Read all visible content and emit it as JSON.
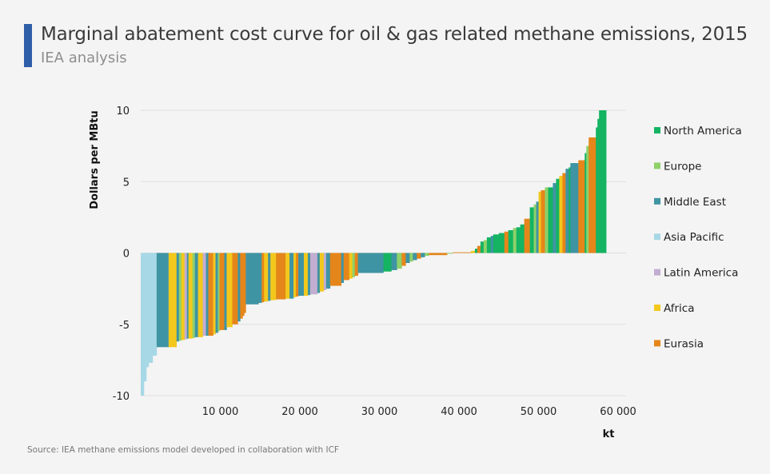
{
  "title": "Marginal abatement cost curve for oil & gas related methane emissions, 2015",
  "subtitle": "IEA analysis",
  "source": "Source: IEA methane emissions model developed in collaboration with ICF",
  "chart_data": {
    "type": "bar",
    "xlabel": "kt",
    "ylabel": "Dollars per MBtu",
    "xlim": [
      0,
      61000
    ],
    "ylim": [
      -10,
      10
    ],
    "x_ticks": [
      10000,
      20000,
      30000,
      40000,
      50000,
      60000
    ],
    "x_tick_labels": [
      "10 000",
      "20 000",
      "30 000",
      "40 000",
      "50 000",
      "60 000"
    ],
    "y_ticks": [
      10,
      5,
      0,
      -5,
      -10
    ],
    "y_tick_labels": [
      "10",
      "5",
      "0",
      "-5",
      "-10"
    ],
    "grid": true,
    "legend_position": "right",
    "series": [
      {
        "name": "North America",
        "color": "#14b462"
      },
      {
        "name": "Europe",
        "color": "#8fd16a"
      },
      {
        "name": "Middle East",
        "color": "#3f94a3"
      },
      {
        "name": "Asia Pacific",
        "color": "#a7d8e6"
      },
      {
        "name": "Latin America",
        "color": "#c1aed0"
      },
      {
        "name": "Africa",
        "color": "#f3c81d"
      },
      {
        "name": "Eurasia",
        "color": "#e5861a"
      }
    ],
    "segments": [
      {
        "region": "Asia Pacific",
        "x0": 0,
        "x1": 400,
        "cost": -10.0
      },
      {
        "region": "Asia Pacific",
        "x0": 400,
        "x1": 700,
        "cost": -9.0
      },
      {
        "region": "Asia Pacific",
        "x0": 700,
        "x1": 1000,
        "cost": -8.0
      },
      {
        "region": "Asia Pacific",
        "x0": 1000,
        "x1": 1500,
        "cost": -7.7
      },
      {
        "region": "Asia Pacific",
        "x0": 1500,
        "x1": 2000,
        "cost": -7.2
      },
      {
        "region": "Middle East",
        "x0": 2000,
        "x1": 3500,
        "cost": -6.6
      },
      {
        "region": "Africa",
        "x0": 3500,
        "x1": 4500,
        "cost": -6.6
      },
      {
        "region": "Middle East",
        "x0": 4500,
        "x1": 4800,
        "cost": -6.2
      },
      {
        "region": "Europe",
        "x0": 4800,
        "x1": 5100,
        "cost": -6.15
      },
      {
        "region": "Africa",
        "x0": 5100,
        "x1": 5500,
        "cost": -6.1
      },
      {
        "region": "Latin America",
        "x0": 5500,
        "x1": 5800,
        "cost": -6.05
      },
      {
        "region": "Middle East",
        "x0": 5800,
        "x1": 6000,
        "cost": -6.0
      },
      {
        "region": "Africa",
        "x0": 6000,
        "x1": 6500,
        "cost": -6.0
      },
      {
        "region": "Europe",
        "x0": 6500,
        "x1": 6800,
        "cost": -5.95
      },
      {
        "region": "Middle East",
        "x0": 6800,
        "x1": 7200,
        "cost": -5.9
      },
      {
        "region": "Africa",
        "x0": 7200,
        "x1": 7800,
        "cost": -5.9
      },
      {
        "region": "Latin America",
        "x0": 7800,
        "x1": 8200,
        "cost": -5.8
      },
      {
        "region": "Middle East",
        "x0": 8200,
        "x1": 8500,
        "cost": -5.8
      },
      {
        "region": "Eurasia",
        "x0": 8500,
        "x1": 9100,
        "cost": -5.8
      },
      {
        "region": "Africa",
        "x0": 9100,
        "x1": 9400,
        "cost": -5.7
      },
      {
        "region": "Middle East",
        "x0": 9400,
        "x1": 9700,
        "cost": -5.6
      },
      {
        "region": "Europe",
        "x0": 9700,
        "x1": 9900,
        "cost": -5.5
      },
      {
        "region": "Eurasia",
        "x0": 9900,
        "x1": 10500,
        "cost": -5.4
      },
      {
        "region": "Middle East",
        "x0": 10500,
        "x1": 10800,
        "cost": -5.4
      },
      {
        "region": "Africa",
        "x0": 10800,
        "x1": 11500,
        "cost": -5.2
      },
      {
        "region": "Eurasia",
        "x0": 11500,
        "x1": 12200,
        "cost": -5.0
      },
      {
        "region": "Middle East",
        "x0": 12200,
        "x1": 12500,
        "cost": -4.8
      },
      {
        "region": "Eurasia",
        "x0": 12500,
        "x1": 12800,
        "cost": -4.6
      },
      {
        "region": "Eurasia",
        "x0": 12800,
        "x1": 13000,
        "cost": -4.4
      },
      {
        "region": "Eurasia",
        "x0": 13000,
        "x1": 13200,
        "cost": -4.2
      },
      {
        "region": "Middle East",
        "x0": 13200,
        "x1": 14800,
        "cost": -3.6
      },
      {
        "region": "Middle East",
        "x0": 14800,
        "x1": 15200,
        "cost": -3.5
      },
      {
        "region": "Eurasia",
        "x0": 15200,
        "x1": 15500,
        "cost": -3.45
      },
      {
        "region": "Africa",
        "x0": 15500,
        "x1": 16000,
        "cost": -3.4
      },
      {
        "region": "Middle East",
        "x0": 16000,
        "x1": 16300,
        "cost": -3.35
      },
      {
        "region": "Africa",
        "x0": 16300,
        "x1": 17000,
        "cost": -3.3
      },
      {
        "region": "Eurasia",
        "x0": 17000,
        "x1": 18200,
        "cost": -3.25
      },
      {
        "region": "Africa",
        "x0": 18200,
        "x1": 18700,
        "cost": -3.2
      },
      {
        "region": "Middle East",
        "x0": 18700,
        "x1": 19200,
        "cost": -3.2
      },
      {
        "region": "Africa",
        "x0": 19200,
        "x1": 19500,
        "cost": -3.1
      },
      {
        "region": "Eurasia",
        "x0": 19500,
        "x1": 19800,
        "cost": -3.05
      },
      {
        "region": "Middle East",
        "x0": 19800,
        "x1": 20500,
        "cost": -3.0
      },
      {
        "region": "Africa",
        "x0": 20500,
        "x1": 21000,
        "cost": -3.0
      },
      {
        "region": "Middle East",
        "x0": 21000,
        "x1": 21300,
        "cost": -2.95
      },
      {
        "region": "Latin America",
        "x0": 21300,
        "x1": 22200,
        "cost": -2.9
      },
      {
        "region": "Middle East",
        "x0": 22200,
        "x1": 22500,
        "cost": -2.8
      },
      {
        "region": "Africa",
        "x0": 22500,
        "x1": 23000,
        "cost": -2.7
      },
      {
        "region": "Latin America",
        "x0": 23000,
        "x1": 23300,
        "cost": -2.6
      },
      {
        "region": "Middle East",
        "x0": 23300,
        "x1": 23800,
        "cost": -2.5
      },
      {
        "region": "Eurasia",
        "x0": 23800,
        "x1": 25200,
        "cost": -2.3
      },
      {
        "region": "Middle East",
        "x0": 25200,
        "x1": 25500,
        "cost": -2.1
      },
      {
        "region": "Eurasia",
        "x0": 25500,
        "x1": 26200,
        "cost": -1.9
      },
      {
        "region": "Africa",
        "x0": 26200,
        "x1": 26600,
        "cost": -1.8
      },
      {
        "region": "Europe",
        "x0": 26600,
        "x1": 26900,
        "cost": -1.7
      },
      {
        "region": "Eurasia",
        "x0": 26900,
        "x1": 27300,
        "cost": -1.6
      },
      {
        "region": "Middle East",
        "x0": 27300,
        "x1": 30500,
        "cost": -1.4
      },
      {
        "region": "North America",
        "x0": 30500,
        "x1": 31500,
        "cost": -1.3
      },
      {
        "region": "Middle East",
        "x0": 31500,
        "x1": 32200,
        "cost": -1.2
      },
      {
        "region": "Europe",
        "x0": 32200,
        "x1": 32800,
        "cost": -1.1
      },
      {
        "region": "Eurasia",
        "x0": 32800,
        "x1": 33300,
        "cost": -0.9
      },
      {
        "region": "Middle East",
        "x0": 33300,
        "x1": 33800,
        "cost": -0.7
      },
      {
        "region": "Europe",
        "x0": 33800,
        "x1": 34200,
        "cost": -0.6
      },
      {
        "region": "Middle East",
        "x0": 34200,
        "x1": 34700,
        "cost": -0.5
      },
      {
        "region": "Eurasia",
        "x0": 34700,
        "x1": 35200,
        "cost": -0.4
      },
      {
        "region": "Middle East",
        "x0": 35200,
        "x1": 35700,
        "cost": -0.3
      },
      {
        "region": "Europe",
        "x0": 35700,
        "x1": 36200,
        "cost": -0.2
      },
      {
        "region": "Eurasia",
        "x0": 36200,
        "x1": 38500,
        "cost": -0.15
      },
      {
        "region": "Europe",
        "x0": 38500,
        "x1": 39200,
        "cost": -0.05
      },
      {
        "region": "Eurasia",
        "x0": 39200,
        "x1": 41500,
        "cost": 0.05
      },
      {
        "region": "Africa",
        "x0": 41500,
        "x1": 42000,
        "cost": 0.15
      },
      {
        "region": "North America",
        "x0": 42000,
        "x1": 42300,
        "cost": 0.3
      },
      {
        "region": "Eurasia",
        "x0": 42300,
        "x1": 42700,
        "cost": 0.5
      },
      {
        "region": "North America",
        "x0": 42700,
        "x1": 43100,
        "cost": 0.8
      },
      {
        "region": "Europe",
        "x0": 43100,
        "x1": 43500,
        "cost": 0.9
      },
      {
        "region": "North America",
        "x0": 43500,
        "x1": 44000,
        "cost": 1.1
      },
      {
        "region": "Middle East",
        "x0": 44000,
        "x1": 44300,
        "cost": 1.2
      },
      {
        "region": "North America",
        "x0": 44300,
        "x1": 45000,
        "cost": 1.3
      },
      {
        "region": "North America",
        "x0": 45000,
        "x1": 45700,
        "cost": 1.4
      },
      {
        "region": "Eurasia",
        "x0": 45700,
        "x1": 46200,
        "cost": 1.5
      },
      {
        "region": "North America",
        "x0": 46200,
        "x1": 46800,
        "cost": 1.6
      },
      {
        "region": "Europe",
        "x0": 46800,
        "x1": 47200,
        "cost": 1.75
      },
      {
        "region": "North America",
        "x0": 47200,
        "x1": 47700,
        "cost": 1.8
      },
      {
        "region": "North America",
        "x0": 47700,
        "x1": 48200,
        "cost": 2.0
      },
      {
        "region": "Eurasia",
        "x0": 48200,
        "x1": 48900,
        "cost": 2.4
      },
      {
        "region": "North America",
        "x0": 48900,
        "x1": 49400,
        "cost": 3.2
      },
      {
        "region": "Europe",
        "x0": 49400,
        "x1": 49700,
        "cost": 3.4
      },
      {
        "region": "Middle East",
        "x0": 49700,
        "x1": 50000,
        "cost": 3.6
      },
      {
        "region": "Africa",
        "x0": 50000,
        "x1": 50300,
        "cost": 4.3
      },
      {
        "region": "Eurasia",
        "x0": 50300,
        "x1": 50800,
        "cost": 4.4
      },
      {
        "region": "Europe",
        "x0": 50800,
        "x1": 51200,
        "cost": 4.6
      },
      {
        "region": "North America",
        "x0": 51200,
        "x1": 51800,
        "cost": 4.6
      },
      {
        "region": "Middle East",
        "x0": 51800,
        "x1": 52200,
        "cost": 4.9
      },
      {
        "region": "North America",
        "x0": 52200,
        "x1": 52600,
        "cost": 5.2
      },
      {
        "region": "Africa",
        "x0": 52600,
        "x1": 53000,
        "cost": 5.4
      },
      {
        "region": "Eurasia",
        "x0": 53000,
        "x1": 53400,
        "cost": 5.6
      },
      {
        "region": "Middle East",
        "x0": 53400,
        "x1": 53800,
        "cost": 5.9
      },
      {
        "region": "North America",
        "x0": 53800,
        "x1": 54000,
        "cost": 6.0
      },
      {
        "region": "Middle East",
        "x0": 54000,
        "x1": 55000,
        "cost": 6.3
      },
      {
        "region": "Eurasia",
        "x0": 55000,
        "x1": 55800,
        "cost": 6.5
      },
      {
        "region": "North America",
        "x0": 55800,
        "x1": 56000,
        "cost": 7.0
      },
      {
        "region": "Europe",
        "x0": 56000,
        "x1": 56300,
        "cost": 7.5
      },
      {
        "region": "Eurasia",
        "x0": 56300,
        "x1": 57200,
        "cost": 8.1
      },
      {
        "region": "North America",
        "x0": 57200,
        "x1": 57400,
        "cost": 8.8
      },
      {
        "region": "North America",
        "x0": 57400,
        "x1": 57600,
        "cost": 9.4
      },
      {
        "region": "North America",
        "x0": 57600,
        "x1": 58500,
        "cost": 10.0
      }
    ]
  }
}
